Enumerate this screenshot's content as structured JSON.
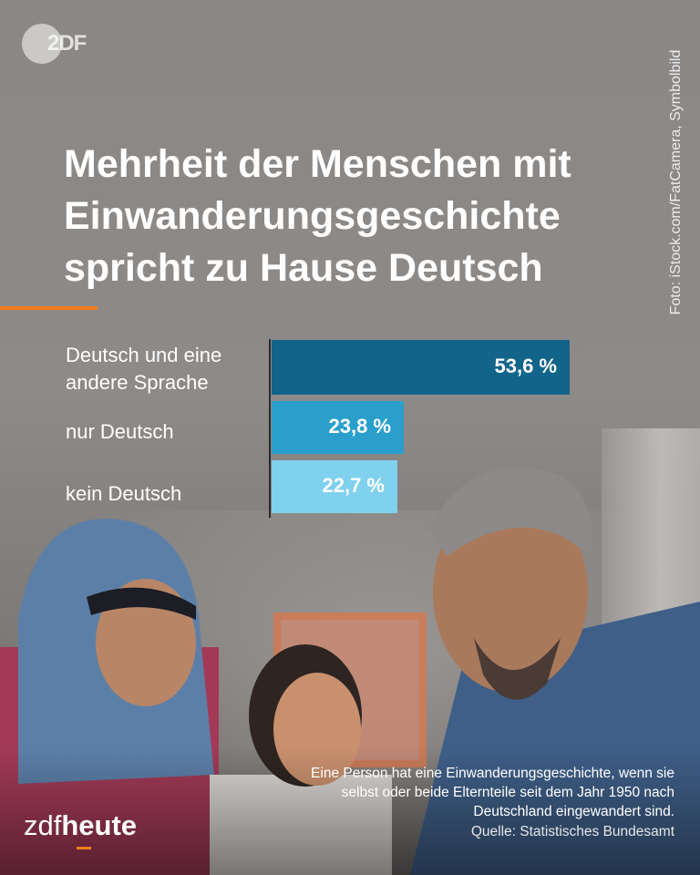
{
  "brand": {
    "logo_text": "2DF",
    "footer_logo_zdf": "zdf",
    "footer_logo_heute": "heute",
    "accent_color": "#f07d1e"
  },
  "photo_credit": "Foto: iStock.com/FatCamera, Symbolbild",
  "headline": "Mehrheit der Menschen mit Einwanderungsgeschichte spricht zu Hause Deutsch",
  "chart_data": {
    "type": "bar",
    "orientation": "horizontal",
    "categories": [
      "Deutsch und eine andere Sprache",
      "nur Deutsch",
      "kein Deutsch"
    ],
    "values": [
      53.6,
      23.8,
      22.7
    ],
    "value_labels": [
      "53,6 %",
      "23,8 %",
      "22,7 %"
    ],
    "colors": [
      "#13648a",
      "#2a9fcc",
      "#7fd1ee"
    ],
    "xlim": [
      0,
      53.6
    ],
    "title": "",
    "xlabel": "",
    "ylabel": "",
    "grid": false,
    "legend": "none"
  },
  "footnote": "Eine Person hat eine Einwanderungsgeschichte, wenn sie selbst oder beide Elternteile seit dem Jahr 1950 nach Deutschland eingewandert sind.",
  "source": "Quelle: Statistisches Bundesamt"
}
